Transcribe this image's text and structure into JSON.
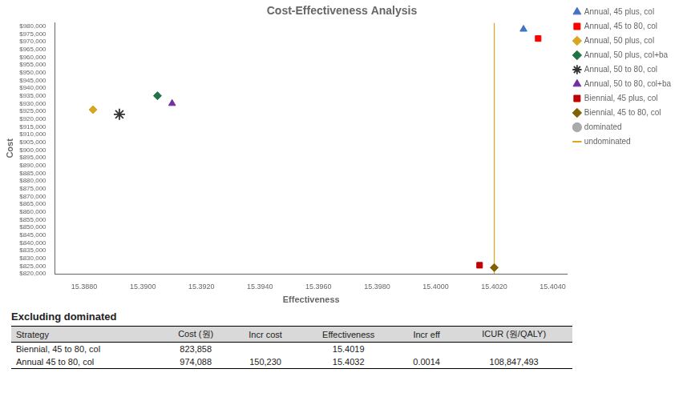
{
  "chart_data": {
    "type": "scatter",
    "title": "Cost-Effectiveness Analysis",
    "x_label": "Effectiveness",
    "y_label": "Cost",
    "xlim": [
      15.387,
      15.4045
    ],
    "ylim": [
      820000,
      982000
    ],
    "xticks": [
      {
        "value": 15.388,
        "label": "15.3880"
      },
      {
        "value": 15.39,
        "label": "15.3900"
      },
      {
        "value": 15.392,
        "label": "15.3920"
      },
      {
        "value": 15.394,
        "label": "15.3940"
      },
      {
        "value": 15.396,
        "label": "15.3960"
      },
      {
        "value": 15.398,
        "label": "15.3980"
      },
      {
        "value": 15.4,
        "label": "15.4000"
      },
      {
        "value": 15.402,
        "label": "15.4020"
      },
      {
        "value": 15.404,
        "label": "15.4040"
      }
    ],
    "yticks": [
      {
        "value": 820000,
        "label": "$820,000"
      },
      {
        "value": 825000,
        "label": "$825,000"
      },
      {
        "value": 830000,
        "label": "$830,000"
      },
      {
        "value": 835000,
        "label": "$835,000"
      },
      {
        "value": 840000,
        "label": "$840,000"
      },
      {
        "value": 845000,
        "label": "$845,000"
      },
      {
        "value": 850000,
        "label": "$850,000"
      },
      {
        "value": 855000,
        "label": "$855,000"
      },
      {
        "value": 860000,
        "label": "$860,000"
      },
      {
        "value": 865000,
        "label": "$865,000"
      },
      {
        "value": 870000,
        "label": "$870,000"
      },
      {
        "value": 875000,
        "label": "$875,000"
      },
      {
        "value": 880000,
        "label": "$880,000"
      },
      {
        "value": 885000,
        "label": "$885,000"
      },
      {
        "value": 890000,
        "label": "$890,000"
      },
      {
        "value": 895000,
        "label": "$895,000"
      },
      {
        "value": 900000,
        "label": "$900,000"
      },
      {
        "value": 905000,
        "label": "$905,000"
      },
      {
        "value": 910000,
        "label": "$910,000"
      },
      {
        "value": 915000,
        "label": "$915,000"
      },
      {
        "value": 920000,
        "label": "$920,000"
      },
      {
        "value": 925000,
        "label": "$925,000"
      },
      {
        "value": 930000,
        "label": "$930,000"
      },
      {
        "value": 935000,
        "label": "$935,000"
      },
      {
        "value": 940000,
        "label": "$940,000"
      },
      {
        "value": 945000,
        "label": "$945,000"
      },
      {
        "value": 950000,
        "label": "$950,000"
      },
      {
        "value": 955000,
        "label": "$955,000"
      },
      {
        "value": 960000,
        "label": "$960,000"
      },
      {
        "value": 965000,
        "label": "$965,000"
      },
      {
        "value": 970000,
        "label": "$970,000"
      },
      {
        "value": 975000,
        "label": "$975,000"
      },
      {
        "value": 980000,
        "label": "$980,000"
      }
    ],
    "grid": false,
    "legend": "right",
    "series": [
      {
        "name": "Annual, 45 plus, col",
        "color": "#4472C4",
        "marker": "triangle",
        "x": [
          15.403
        ],
        "values": [
          978000
        ]
      },
      {
        "name": "Annual, 45 to 80, col",
        "color": "#FF0000",
        "marker": "square",
        "x": [
          15.4035
        ],
        "values": [
          972000
        ]
      },
      {
        "name": "Annual, 50 plus, col",
        "color": "#DAA520",
        "marker": "diamond",
        "x": [
          15.3883
        ],
        "values": [
          926000
        ]
      },
      {
        "name": "Annual, 50 plus, col+ba",
        "color": "#217346",
        "marker": "diamond",
        "x": [
          15.3905
        ],
        "values": [
          935000
        ]
      },
      {
        "name": "Annual, 50 to 80, col",
        "color": "#333333",
        "marker": "star",
        "x": [
          15.3892
        ],
        "values": [
          923000
        ]
      },
      {
        "name": "Annual, 50 to 80, col+ba",
        "color": "#7030A0",
        "marker": "triangle",
        "x": [
          15.391
        ],
        "values": [
          930000
        ]
      },
      {
        "name": "Biennial, 45 plus, col",
        "color": "#C00000",
        "marker": "square",
        "x": [
          15.4015
        ],
        "values": [
          825500
        ]
      },
      {
        "name": "Biennial, 45 to 80, col",
        "color": "#806000",
        "marker": "diamond",
        "x": [
          15.402
        ],
        "values": [
          824000
        ]
      },
      {
        "name": "dominated",
        "color": "#aaaaaa",
        "marker": "circle",
        "x": [],
        "values": []
      }
    ],
    "vlines": [
      {
        "x": 15.402,
        "name": "undominated",
        "color": "#DAA520",
        "line_style": "solid"
      }
    ],
    "table": {
      "title": "Excluding dominated",
      "headers": [
        "Strategy",
        "Cost (원)",
        "Incr cost",
        "Effectiveness",
        "Incr eff",
        "ICUR (원/QALY)"
      ],
      "rows": [
        [
          "Biennial, 45 to 80, col",
          "823,858",
          null,
          "15.4019",
          null,
          null
        ],
        [
          "Annual 45 to 80, col",
          "974,088",
          "150,230",
          "15.4032",
          "0.0014",
          "108,847,493"
        ]
      ]
    }
  }
}
